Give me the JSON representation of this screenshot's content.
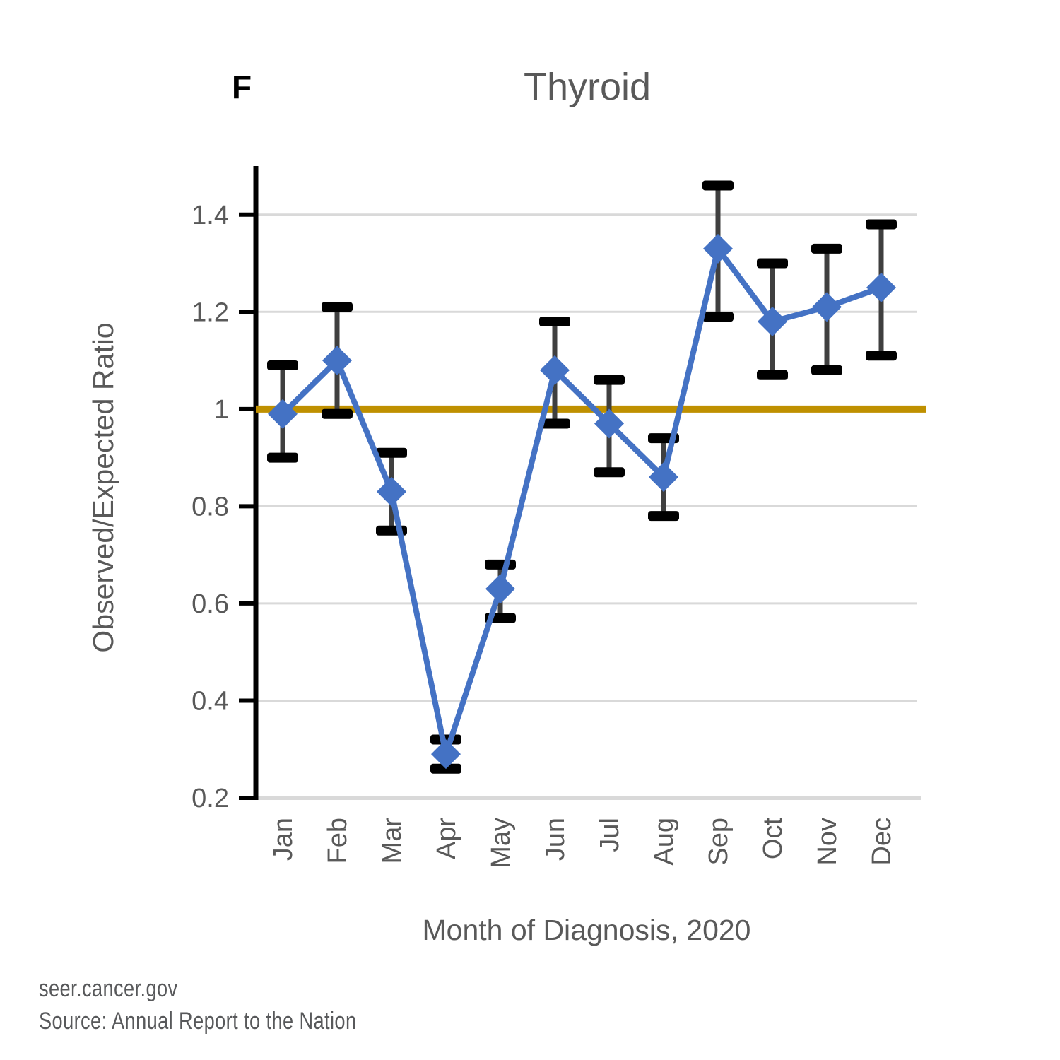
{
  "header": {
    "panel_label": "F",
    "title": "Thyroid"
  },
  "footer": {
    "line1": "seer.cancer.gov",
    "line2": "Source: Annual Report to the Nation"
  },
  "chart_data": {
    "type": "line",
    "title": "Thyroid",
    "panel_label": "F",
    "categories": [
      "Jan",
      "Feb",
      "Mar",
      "Apr",
      "May",
      "Jun",
      "Jul",
      "Aug",
      "Sep",
      "Oct",
      "Nov",
      "Dec"
    ],
    "series": [
      {
        "name": "Observed/Expected Ratio",
        "values": [
          0.99,
          1.1,
          0.83,
          0.29,
          0.63,
          1.08,
          0.97,
          0.86,
          1.33,
          1.18,
          1.21,
          1.25
        ],
        "ci_low": [
          0.9,
          0.99,
          0.75,
          0.26,
          0.57,
          0.97,
          0.87,
          0.78,
          1.19,
          1.07,
          1.08,
          1.11
        ],
        "ci_high": [
          1.09,
          1.21,
          0.91,
          0.32,
          0.68,
          1.18,
          1.06,
          0.94,
          1.46,
          1.3,
          1.33,
          1.38
        ]
      }
    ],
    "reference_line": {
      "value": 1.0
    },
    "xlabel": "Month of Diagnosis, 2020",
    "ylabel": "Observed/Expected Ratio",
    "ylim": [
      0.2,
      1.5
    ],
    "yticks": [
      0.2,
      0.4,
      0.6,
      0.8,
      1,
      1.2,
      1.4
    ],
    "grid": true,
    "legend_position": "none",
    "marker": "diamond",
    "colors": {
      "series": "#4472C4",
      "reference": "#BF9000",
      "error_line": "#3F3F3F",
      "error_cap": "#000000",
      "grid": "#D9D9D9",
      "axis": "#000000",
      "text": "#595959"
    }
  }
}
